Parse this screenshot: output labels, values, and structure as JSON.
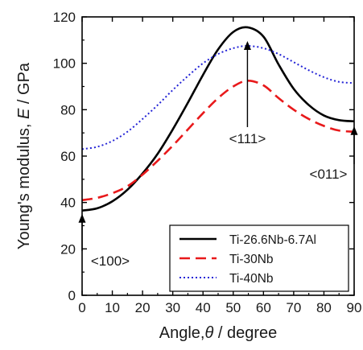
{
  "chart_data": {
    "type": "line",
    "xlabel": "Angle,θ / degree",
    "xlabel_parts": [
      "Angle,",
      "θ",
      " / degree"
    ],
    "ylabel": "Young's modulus, E / GPa",
    "ylabel_parts": [
      "Young's modulus, ",
      "E",
      " / GPa"
    ],
    "xlim": [
      0,
      90
    ],
    "ylim": [
      0,
      120
    ],
    "xticks": [
      0,
      10,
      20,
      30,
      40,
      50,
      60,
      70,
      80,
      90
    ],
    "yticks": [
      0,
      20,
      40,
      60,
      80,
      100,
      120
    ],
    "grid": false,
    "legend_position": "bottom-right",
    "series": [
      {
        "name": "Ti-26.6Nb-6.7Al",
        "color": "#000000",
        "style": "solid",
        "x": [
          0,
          5,
          10,
          15,
          20,
          25,
          30,
          35,
          40,
          45,
          50,
          54.7,
          60,
          65,
          70,
          75,
          80,
          85,
          90
        ],
        "y": [
          36.5,
          37.5,
          40.5,
          45.5,
          52.5,
          61,
          71.5,
          83,
          95,
          106,
          113.5,
          115.5,
          111.5,
          99.5,
          89,
          82,
          77.5,
          75.5,
          75
        ]
      },
      {
        "name": "Ti-30Nb",
        "color": "#e8191b",
        "style": "dashed",
        "x": [
          0,
          5,
          10,
          15,
          20,
          25,
          30,
          35,
          40,
          45,
          50,
          54.7,
          60,
          65,
          70,
          75,
          80,
          85,
          90
        ],
        "y": [
          41,
          42,
          44,
          47,
          52,
          58,
          64.5,
          71.5,
          78.5,
          85,
          90,
          92.5,
          90.5,
          85,
          80,
          76,
          73,
          71,
          70.5
        ]
      },
      {
        "name": "Ti-40Nb",
        "color": "#2323d6",
        "style": "dotted",
        "x": [
          0,
          5,
          10,
          15,
          20,
          25,
          30,
          35,
          40,
          45,
          50,
          54.7,
          60,
          65,
          70,
          75,
          80,
          85,
          90
        ],
        "y": [
          63,
          64,
          66.5,
          70.5,
          76,
          82,
          88.5,
          94.5,
          100,
          104,
          106.5,
          107.5,
          106.5,
          104,
          100.5,
          97,
          94,
          92,
          91.5
        ]
      }
    ],
    "annotations": [
      {
        "text": "<100>",
        "x": 0,
        "y": 36.5
      },
      {
        "text": "<111>",
        "x": 54.7,
        "y": 115.5
      },
      {
        "text": "<011>",
        "x": 90,
        "y": 75
      }
    ]
  }
}
